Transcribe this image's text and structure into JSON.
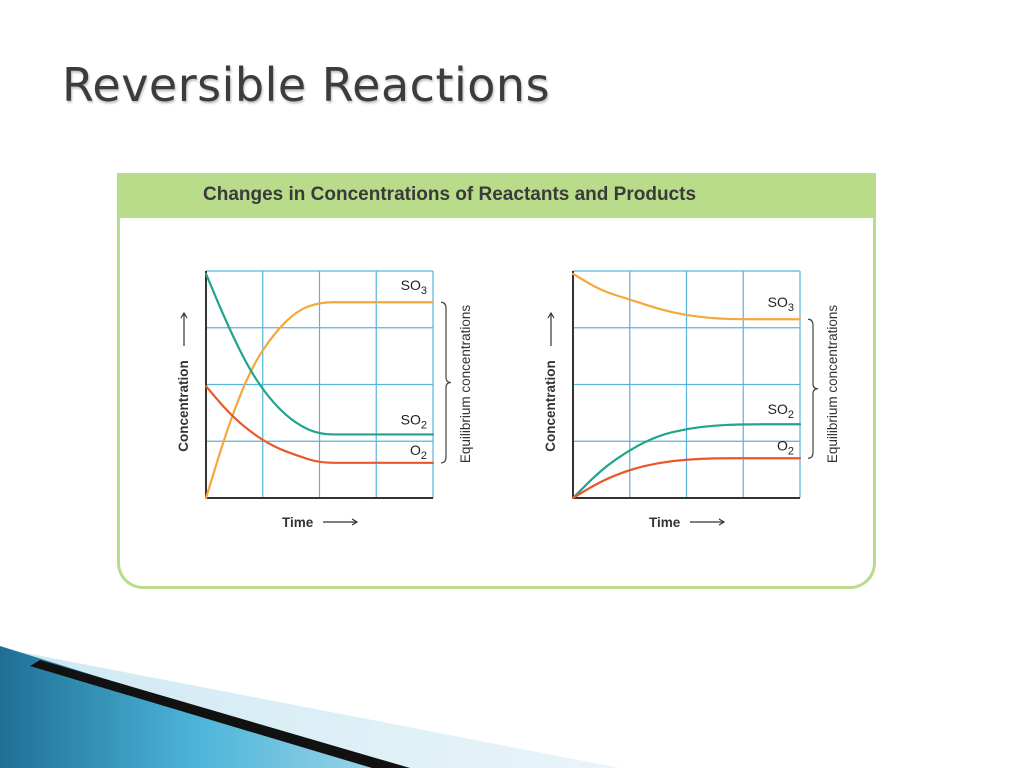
{
  "slide": {
    "title": "Reversible Reactions"
  },
  "figure": {
    "title": "Changes in Concentrations of Reactants and Products"
  },
  "chart_data": [
    {
      "type": "line",
      "title": "",
      "xlabel": "Time",
      "ylabel": "Concentration",
      "xlim": [
        0,
        4
      ],
      "ylim": [
        0,
        4
      ],
      "grid": true,
      "bracket_label": "Equilibrium concentrations",
      "series": [
        {
          "name": "SO3",
          "label_main": "SO",
          "label_sub": "3",
          "color": "#f2a83a",
          "points": [
            [
              0,
              0
            ],
            [
              0.4,
              1.3
            ],
            [
              0.8,
              2.3
            ],
            [
              1.2,
              2.9
            ],
            [
              1.6,
              3.3
            ],
            [
              2,
              3.45
            ],
            [
              2.5,
              3.45
            ],
            [
              3,
              3.45
            ],
            [
              4,
              3.45
            ]
          ]
        },
        {
          "name": "SO2",
          "label_main": "SO",
          "label_sub": "2",
          "color": "#1fa58c",
          "points": [
            [
              0,
              3.95
            ],
            [
              0.4,
              3.0
            ],
            [
              0.8,
              2.2
            ],
            [
              1.2,
              1.65
            ],
            [
              1.6,
              1.3
            ],
            [
              2,
              1.12
            ],
            [
              2.5,
              1.12
            ],
            [
              3,
              1.12
            ],
            [
              4,
              1.12
            ]
          ]
        },
        {
          "name": "O2",
          "label_main": "O",
          "label_sub": "2",
          "color": "#e8582a",
          "points": [
            [
              0,
              1.97
            ],
            [
              0.4,
              1.5
            ],
            [
              0.8,
              1.15
            ],
            [
              1.2,
              0.9
            ],
            [
              1.6,
              0.75
            ],
            [
              2,
              0.62
            ],
            [
              2.5,
              0.62
            ],
            [
              3,
              0.62
            ],
            [
              4,
              0.62
            ]
          ]
        }
      ]
    },
    {
      "type": "line",
      "title": "",
      "xlabel": "Time",
      "ylabel": "Concentration",
      "xlim": [
        0,
        4
      ],
      "ylim": [
        0,
        4
      ],
      "grid": true,
      "bracket_label": "Equilibrium concentrations",
      "series": [
        {
          "name": "SO3",
          "label_main": "SO",
          "label_sub": "3",
          "color": "#f2a83a",
          "points": [
            [
              0,
              3.95
            ],
            [
              0.5,
              3.65
            ],
            [
              1,
              3.5
            ],
            [
              1.5,
              3.33
            ],
            [
              2,
              3.22
            ],
            [
              2.5,
              3.16
            ],
            [
              3,
              3.15
            ],
            [
              4,
              3.15
            ]
          ]
        },
        {
          "name": "SO2",
          "label_main": "SO",
          "label_sub": "2",
          "color": "#1fa58c",
          "points": [
            [
              0,
              0
            ],
            [
              0.5,
              0.5
            ],
            [
              1,
              0.85
            ],
            [
              1.5,
              1.1
            ],
            [
              2,
              1.22
            ],
            [
              2.5,
              1.28
            ],
            [
              3,
              1.3
            ],
            [
              4,
              1.3
            ]
          ]
        },
        {
          "name": "O2",
          "label_main": "O",
          "label_sub": "2",
          "color": "#e8582a",
          "points": [
            [
              0,
              0
            ],
            [
              0.5,
              0.3
            ],
            [
              1,
              0.5
            ],
            [
              1.5,
              0.62
            ],
            [
              2,
              0.68
            ],
            [
              2.5,
              0.7
            ],
            [
              3,
              0.7
            ],
            [
              4,
              0.7
            ]
          ]
        }
      ]
    }
  ],
  "colors": {
    "panel_green": "#b9dc8a",
    "grid_blue": "#58b4dc",
    "axis": "#333333"
  }
}
